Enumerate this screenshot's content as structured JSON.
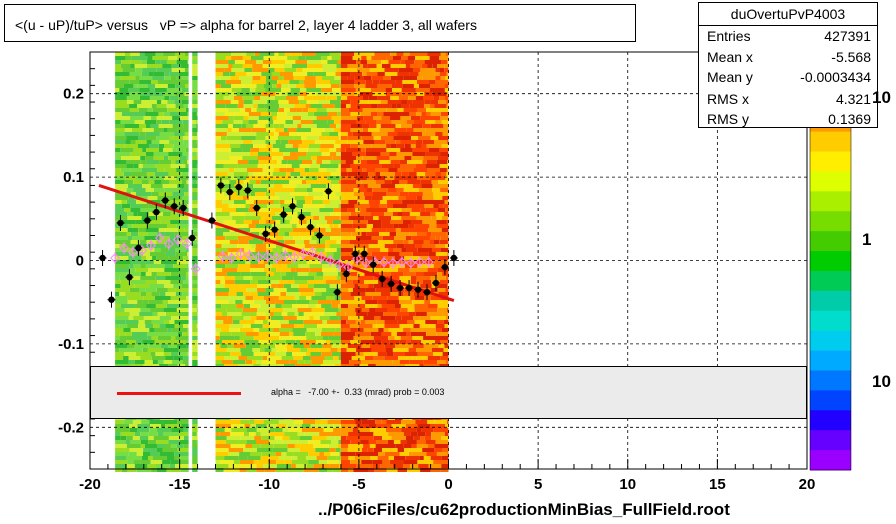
{
  "title": "<(u - uP)/tuP> versus   vP => alpha for barrel 2, layer 4 ladder 3, all wafers",
  "stats": {
    "name": "duOvertuPvP4003",
    "rows": [
      {
        "k": "Entries",
        "v": "427391"
      },
      {
        "k": "Mean x",
        "v": "-5.568"
      },
      {
        "k": "Mean y",
        "v": "-0.0003434"
      },
      {
        "k": "RMS x",
        "v": "4.321"
      },
      {
        "k": "RMS y",
        "v": "0.1369"
      }
    ]
  },
  "fit_text": "alpha =   -7.00 +-  0.33 (mrad) prob = 0.003",
  "file_label": "../P06icFiles/cu62productionMinBias_FullField.root",
  "palette_labels": [
    "10",
    "1",
    "10"
  ],
  "colors": {
    "fit_line": "#e11111",
    "profile": "#000000",
    "profile2": "#ff88ff"
  },
  "chart_data": {
    "type": "scatter",
    "xlim": [
      -20,
      20
    ],
    "ylim": [
      -0.25,
      0.25
    ],
    "x_ticks": [
      "-20",
      "-15",
      "-10",
      "-5",
      "0",
      "5",
      "10",
      "15",
      "20"
    ],
    "y_ticks": [
      "0.2",
      "0.1",
      "0",
      "-0.1",
      "-0.2"
    ],
    "grid": true,
    "fit": {
      "x": [
        -19.5,
        0.3
      ],
      "y": [
        0.09,
        -0.048
      ]
    },
    "series": [
      {
        "x": [
          -19.3,
          -18.8,
          -18.3,
          -17.8,
          -17.3,
          -16.8,
          -16.3,
          -15.8,
          -15.3,
          -14.8,
          -14.3,
          -13.2,
          -12.7,
          -12.2,
          -11.7,
          -11.2,
          -10.7,
          -10.2,
          -9.7,
          -9.2,
          -8.7,
          -8.2,
          -7.7,
          -7.2,
          -6.7,
          -6.2,
          -5.7,
          -5.2,
          -4.7,
          -4.2,
          -3.7,
          -3.2,
          -2.7,
          -2.2,
          -1.7,
          -1.2,
          -0.7,
          -0.2,
          0.3
        ],
        "y": [
          0.003,
          -0.047,
          0.045,
          -0.02,
          0.015,
          0.048,
          0.058,
          0.072,
          0.065,
          0.063,
          0.027,
          0.048,
          0.09,
          0.082,
          0.088,
          0.084,
          0.063,
          0.032,
          0.037,
          0.055,
          0.065,
          0.052,
          0.04,
          0.03,
          0.083,
          -0.038,
          -0.016,
          0.008,
          0.008,
          -0.005,
          -0.022,
          -0.028,
          -0.033,
          -0.033,
          -0.035,
          -0.038,
          -0.027,
          -0.008,
          0.003
        ]
      },
      {
        "x": [
          -18.6,
          -18.1,
          -17.6,
          -17.1,
          -16.6,
          -16.1,
          -15.6,
          -15.1,
          -14.6,
          -14.1,
          -12.6,
          -12.1,
          -11.6,
          -11.1,
          -10.6,
          -10.1,
          -9.6,
          -9.1,
          -8.6,
          -8.1,
          -7.6,
          -7.1,
          -6.6,
          -6.1,
          -5.6,
          -5.1,
          -4.6,
          -4.1,
          -3.6,
          -3.1,
          -2.6,
          -2.1,
          -1.6,
          -1.1
        ],
        "y": [
          0.003,
          0.015,
          0.01,
          0.012,
          0.018,
          0.027,
          0.02,
          0.025,
          0.02,
          -0.01,
          0.005,
          0.003,
          0.008,
          0.006,
          0.004,
          0.005,
          0.003,
          0.006,
          0.004,
          0.008,
          0.01,
          0.004,
          0.0,
          -0.005,
          -0.008,
          0.002,
          -0.003,
          -0.002,
          -0.002,
          -0.003,
          -0.002,
          -0.003,
          -0.002,
          -0.002
        ]
      }
    ]
  }
}
